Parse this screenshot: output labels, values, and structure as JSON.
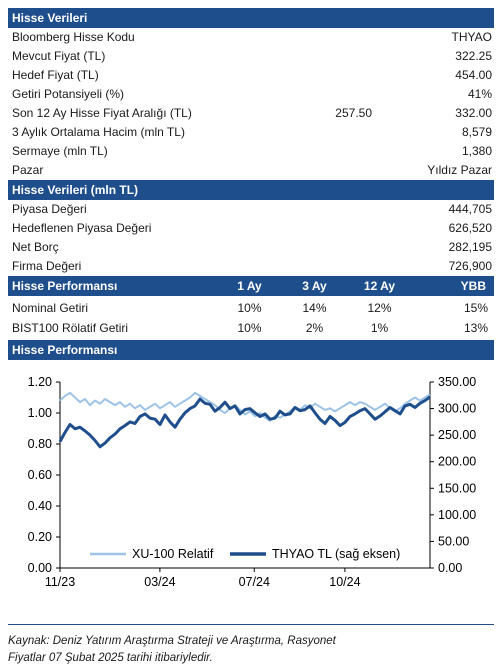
{
  "stock_data": {
    "title": "Hisse Verileri",
    "rows": [
      {
        "label": "Bloomberg Hisse Kodu",
        "mid": "",
        "value": "THYAO"
      },
      {
        "label": "Mevcut Fiyat (TL)",
        "mid": "",
        "value": "322.25"
      },
      {
        "label": "Hedef Fiyat (TL)",
        "mid": "",
        "value": "454.00"
      },
      {
        "label": "Getiri Potansiyeli (%)",
        "mid": "",
        "value": "41%"
      },
      {
        "label": "Son 12 Ay Hisse Fiyat Aralığı (TL)",
        "mid": "257.50",
        "value": "332.00"
      },
      {
        "label": "3 Aylık Ortalama Hacim (mln TL)",
        "mid": "",
        "value": "8,579"
      },
      {
        "label": "Sermaye (mln TL)",
        "mid": "",
        "value": "1,380"
      },
      {
        "label": "Pazar",
        "mid": "",
        "value": "Yıldız Pazar"
      }
    ]
  },
  "stock_data_mln": {
    "title": "Hisse Verileri (mln TL)",
    "rows": [
      {
        "label": "Piyasa Değeri",
        "value": "444,705"
      },
      {
        "label": "Hedeflenen Piyasa Değeri",
        "value": "626,520"
      },
      {
        "label": "Net Borç",
        "value": "282,195"
      },
      {
        "label": "Firma Değeri",
        "value": "726,900"
      }
    ]
  },
  "performance": {
    "title": "Hisse Performansı",
    "columns": [
      "1 Ay",
      "3 Ay",
      "12 Ay",
      "YBB"
    ],
    "rows": [
      {
        "label": "Nominal Getiri",
        "values": [
          "10%",
          "14%",
          "12%",
          "15%"
        ]
      },
      {
        "label": "BIST100 Rölatif Getiri",
        "values": [
          "10%",
          "2%",
          "1%",
          "13%"
        ]
      }
    ]
  },
  "chart_section_title": "Hisse Performansı",
  "chart_data": {
    "type": "line",
    "title": "",
    "x_ticks": [
      "11/23",
      "03/24",
      "07/24",
      "10/24"
    ],
    "y_left": {
      "ticks": [
        "0.00",
        "0.20",
        "0.40",
        "0.60",
        "0.80",
        "1.00",
        "1.20"
      ],
      "lim": [
        0,
        1.2
      ]
    },
    "y_right": {
      "ticks": [
        "0.00",
        "50.00",
        "100.00",
        "150.00",
        "200.00",
        "250.00",
        "300.00",
        "350.00"
      ],
      "lim": [
        0,
        350
      ]
    },
    "grid": false,
    "legend_position": "bottom",
    "series": [
      {
        "name": "XU-100 Relatif",
        "axis": "left",
        "color": "#9dc3e6",
        "values": [
          1.08,
          1.11,
          1.13,
          1.1,
          1.07,
          1.09,
          1.05,
          1.08,
          1.06,
          1.09,
          1.07,
          1.05,
          1.07,
          1.04,
          1.06,
          1.03,
          1.05,
          1.02,
          1.04,
          1.06,
          1.03,
          1.05,
          1.07,
          1.04,
          1.06,
          1.08,
          1.1,
          1.13,
          1.11,
          1.09,
          1.07,
          1.05,
          1.02,
          1.0,
          1.03,
          1.05,
          1.02,
          0.99,
          1.01,
          0.98,
          1.0,
          0.97,
          0.95,
          0.98,
          0.97,
          0.99,
          1.01,
          1.04,
          1.02,
          1.05,
          1.03,
          1.06,
          1.04,
          1.02,
          1.03,
          1.01,
          1.03,
          1.05,
          1.07,
          1.05,
          1.07,
          1.06,
          1.04,
          1.02,
          1.04,
          1.06,
          1.03,
          1.01,
          1.03,
          1.06,
          1.08,
          1.1,
          1.08,
          1.1,
          1.12
        ]
      },
      {
        "name": "THYAO TL (sağ eksen)",
        "axis": "right",
        "color": "#1f4e8c",
        "values": [
          238,
          255,
          270,
          262,
          265,
          258,
          250,
          240,
          228,
          235,
          245,
          252,
          262,
          268,
          275,
          272,
          285,
          290,
          282,
          280,
          270,
          288,
          275,
          265,
          280,
          292,
          300,
          305,
          318,
          310,
          308,
          295,
          302,
          312,
          300,
          305,
          290,
          298,
          300,
          292,
          285,
          290,
          280,
          282,
          295,
          288,
          290,
          302,
          296,
          298,
          305,
          292,
          280,
          272,
          285,
          278,
          268,
          274,
          285,
          290,
          296,
          300,
          290,
          280,
          286,
          294,
          302,
          296,
          290,
          305,
          308,
          302,
          310,
          315,
          322
        ]
      }
    ]
  },
  "source": {
    "line1": "Kaynak: Deniz Yatırım Araştırma Strateji ve Araştırma, Rasyonet",
    "line2": "Fiyatlar 07 Şubat 2025 tarihi itibariyledir."
  }
}
